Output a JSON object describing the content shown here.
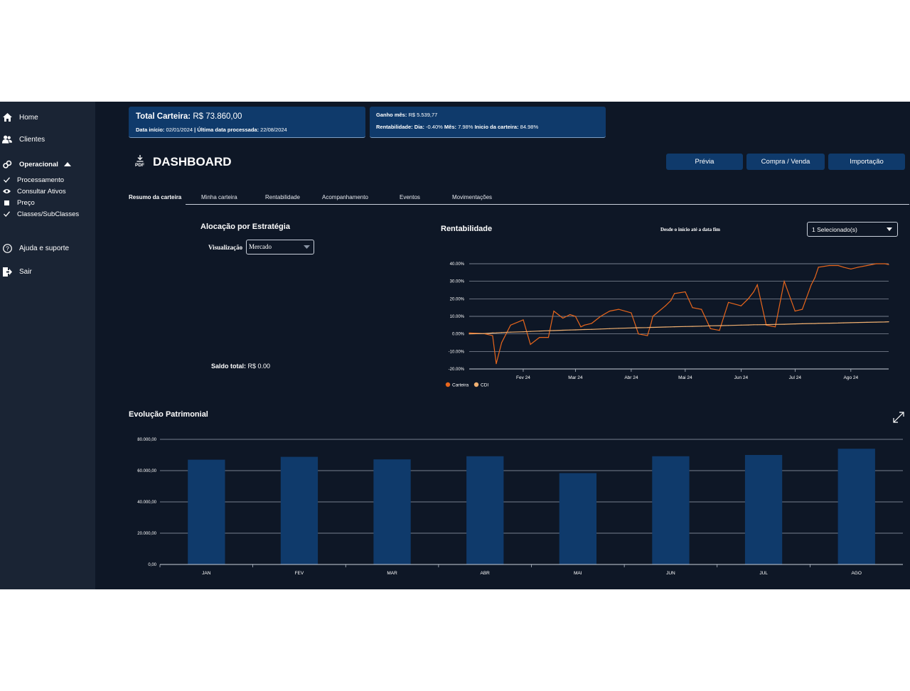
{
  "sidebar": {
    "home": "Home",
    "clients": "Clientes",
    "operational": "Operacional",
    "sub_items": [
      "Processamento",
      "Consultar Ativos",
      "Preço",
      "Classes/SubClasses"
    ],
    "help": "Ajuda e suporte",
    "logout": "Sair"
  },
  "summary": {
    "total_label": "Total Carteira:",
    "total_value": "R$ 73.860,00",
    "start_label": "Data início:",
    "start_value": "02/01/2024",
    "sep": "|",
    "processed_label": "Última data processada:",
    "processed_value": "22/08/2024",
    "gain_label": "Ganho mês:",
    "gain_value": "R$ 5.539,77",
    "return_label": "Rentabilidade:",
    "day_label": "Dia:",
    "day_value": "-0.40%",
    "month_label": "Mês:",
    "month_value": "7.98%",
    "since_label": "Inicio da carteira:",
    "since_value": "84.98%"
  },
  "header": {
    "pdf_label": "PDF",
    "title": "DASHBOARD",
    "buttons": [
      "Prévia",
      "Compra / Venda",
      "Importação"
    ]
  },
  "tabs": [
    "Resumo da carteira",
    "Minha carteira",
    "Rentabilidade",
    "Acompanhamento",
    "Eventos",
    "Movimentações"
  ],
  "allocation": {
    "title": "Alocação por Estratégia",
    "view_label": "Visualização",
    "view_value": "Mercado",
    "total_label": "Saldo total:",
    "total_value": "R$ 0.00"
  },
  "returns": {
    "title": "Rentabilidade",
    "period": "Desde o início até a data fim",
    "selector": "1 Selecionado(s)"
  },
  "evolution": {
    "title": "Evolução Patrimonial"
  },
  "colors": {
    "background": "#0e1726",
    "sidebar": "#1a2434",
    "card": "#0f3a6b",
    "bar": "#0f3a6b",
    "portfolio_line": "#e8661c",
    "cdi_line": "#f0b071"
  },
  "chart_data": [
    {
      "type": "line",
      "title": "Rentabilidade",
      "x": [
        "2024-01-02",
        "2024-01-10",
        "2024-01-15",
        "2024-01-17",
        "2024-01-20",
        "2024-01-25",
        "2024-02-01",
        "2024-02-05",
        "2024-02-10",
        "2024-02-15",
        "2024-02-18",
        "2024-02-23",
        "2024-02-27",
        "2024-03-01",
        "2024-03-04",
        "2024-03-06",
        "2024-03-10",
        "2024-03-15",
        "2024-03-20",
        "2024-03-25",
        "2024-04-01",
        "2024-04-05",
        "2024-04-10",
        "2024-04-12",
        "2024-04-13",
        "2024-04-20",
        "2024-04-23",
        "2024-04-25",
        "2024-05-01",
        "2024-05-05",
        "2024-05-10",
        "2024-05-15",
        "2024-05-20",
        "2024-05-25",
        "2024-06-01",
        "2024-06-05",
        "2024-06-08",
        "2024-06-10",
        "2024-06-15",
        "2024-06-20",
        "2024-06-25",
        "2024-07-01",
        "2024-07-05",
        "2024-07-10",
        "2024-07-12",
        "2024-07-14",
        "2024-07-20",
        "2024-07-25",
        "2024-07-28",
        "2024-08-01",
        "2024-08-05",
        "2024-08-10",
        "2024-08-15",
        "2024-08-20",
        "2024-08-22"
      ],
      "ticks": [
        "Fev 24",
        "Mar 24",
        "Abr 24",
        "Mai 24",
        "Jun 24",
        "Jul 24",
        "Ago 24"
      ],
      "ylim": [
        -20,
        40
      ],
      "yticks": [
        "-20.00%",
        "-10.00%",
        "0.00%",
        "10.00%",
        "20.00%",
        "30.00%",
        "40.00%"
      ],
      "series": [
        {
          "name": "Carteira",
          "values": [
            0.5,
            0.2,
            -1,
            -17,
            -5,
            5,
            8,
            -6,
            -2,
            -2,
            13,
            9,
            11,
            10,
            4,
            5,
            6,
            10,
            13,
            14,
            12,
            0,
            -1,
            6,
            10,
            16,
            19,
            23,
            24,
            15,
            14,
            3,
            2,
            18,
            16,
            20,
            24,
            28,
            5,
            4,
            30,
            13,
            14,
            28,
            32,
            38,
            39,
            39,
            38,
            37,
            38,
            39,
            40,
            40,
            39.5
          ],
          "color": "#e8661c"
        },
        {
          "name": "CDI",
          "values": [
            0,
            0.2,
            0.5,
            0.6,
            0.8,
            1.0,
            1.2,
            1.4,
            1.6,
            1.8,
            1.9,
            2.1,
            2.2,
            2.3,
            2.4,
            2.5,
            2.6,
            2.8,
            3.0,
            3.2,
            3.4,
            3.5,
            3.6,
            3.7,
            3.7,
            3.9,
            4.0,
            4.1,
            4.2,
            4.3,
            4.4,
            4.6,
            4.7,
            4.8,
            5.0,
            5.1,
            5.2,
            5.2,
            5.3,
            5.4,
            5.5,
            5.7,
            5.8,
            5.9,
            5.9,
            6.0,
            6.1,
            6.2,
            6.3,
            6.4,
            6.5,
            6.6,
            6.7,
            6.8,
            6.9
          ],
          "color": "#f0b071"
        }
      ],
      "legend": "bottom-left",
      "grid": true
    },
    {
      "type": "bar",
      "title": "Evolução Patrimonial",
      "categories": [
        "JAN",
        "FEV",
        "MAR",
        "ABR",
        "MAI",
        "JUN",
        "JUL",
        "AGO"
      ],
      "values": [
        67000,
        68800,
        67200,
        69200,
        58400,
        69200,
        70000,
        74000
      ],
      "ylim": [
        0,
        80000
      ],
      "yticks": [
        "0,00",
        "20.000,00",
        "40.000,00",
        "60.000,00",
        "80.000,00"
      ],
      "grid": true
    }
  ]
}
